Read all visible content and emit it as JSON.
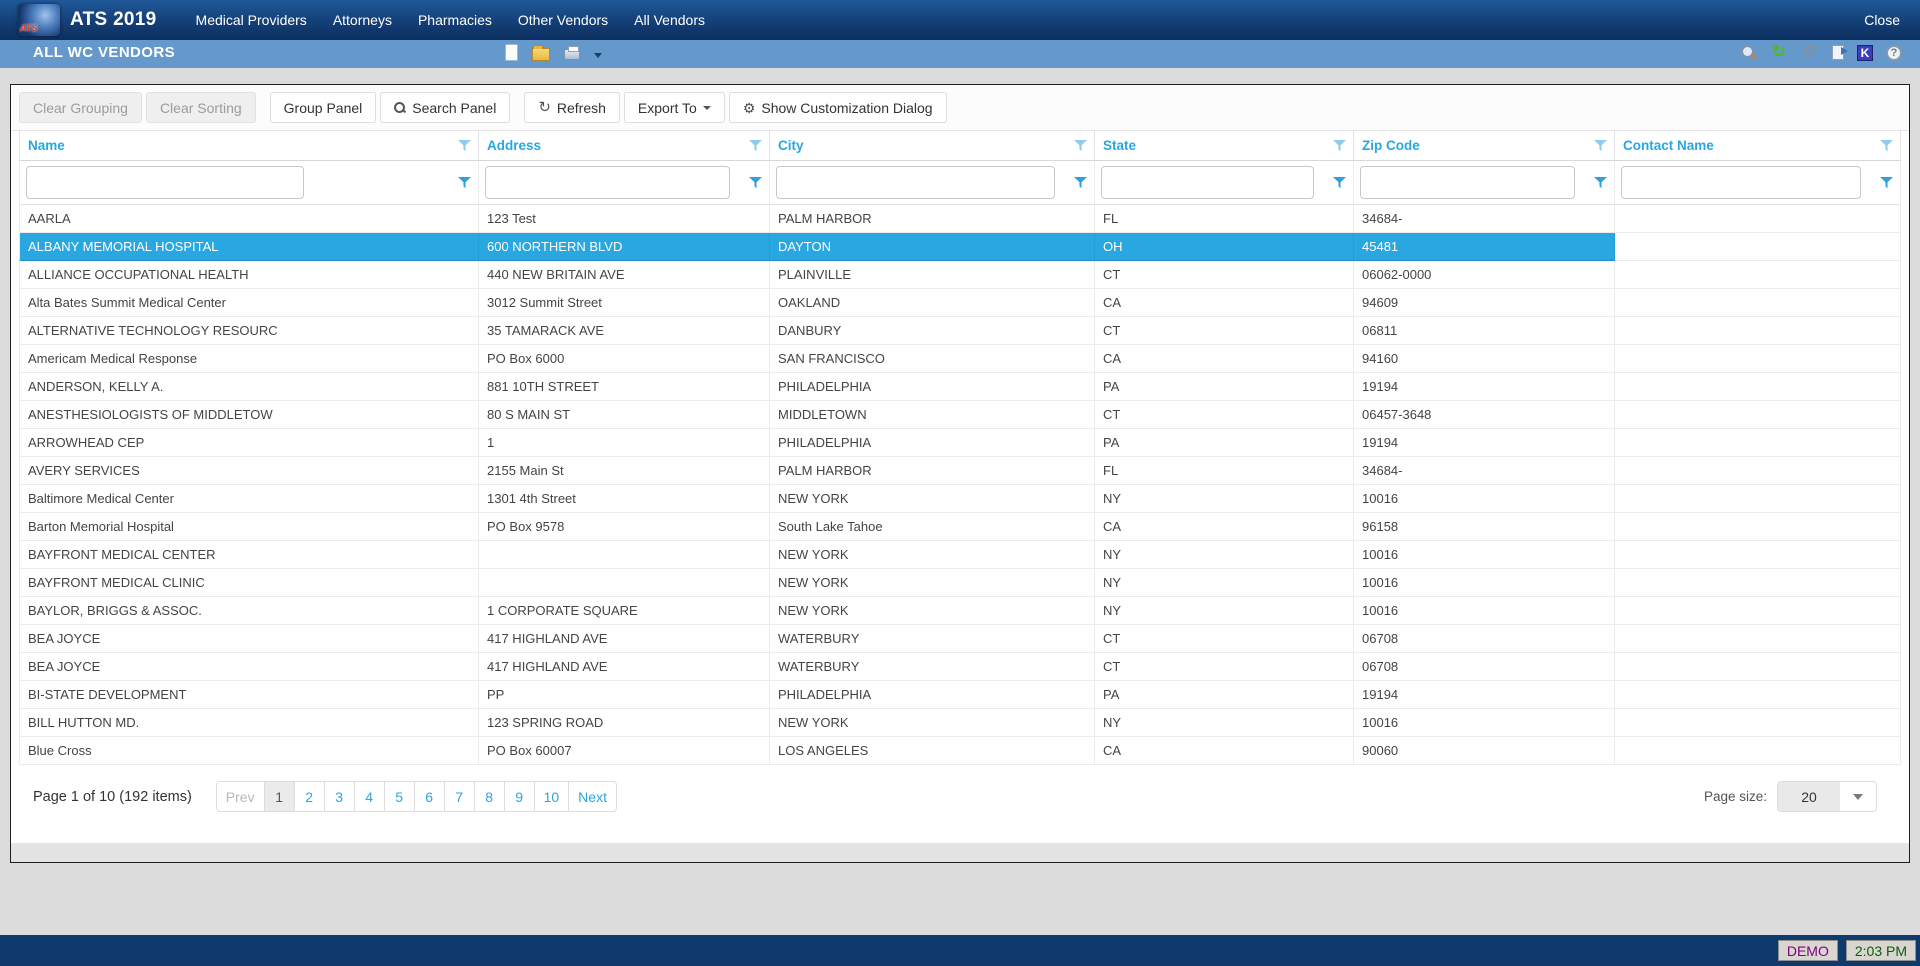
{
  "colors": {
    "accent_blue": "#29a7e0",
    "nav_navy_top": "#1f5899",
    "nav_navy_bottom": "#0c2f60",
    "title_bar_blue": "#6598cb",
    "selected_row": "#29a7e0",
    "status_navy": "#0e3a6d",
    "demo_text": "#800080",
    "time_text": "#0d5c0d"
  },
  "top_nav": {
    "brand": "ATS 2019",
    "items": [
      "Medical Providers",
      "Attorneys",
      "Pharmacies",
      "Other Vendors",
      "All Vendors"
    ],
    "close_label": "Close"
  },
  "title_bar": {
    "title": "ALL WC VENDORS",
    "center_icons": [
      "new-document-icon",
      "open-folder-icon",
      "print-icon",
      "dropdown-caret"
    ],
    "right_icons": [
      "search-icon",
      "refresh-icon",
      "gear-icon",
      "export-icon",
      "keyboard-k-icon",
      "help-icon"
    ]
  },
  "toolbar": {
    "buttons": [
      {
        "label": "Clear Grouping",
        "icon": "",
        "enabled": false
      },
      {
        "label": "Clear Sorting",
        "icon": "",
        "enabled": false
      },
      {
        "label": "Group Panel",
        "icon": "",
        "enabled": true
      },
      {
        "label": "Search Panel",
        "icon": "search",
        "enabled": true
      },
      {
        "label": "Refresh",
        "icon": "refresh",
        "enabled": true
      },
      {
        "label": "Export To",
        "icon": "caret-after",
        "enabled": true
      },
      {
        "label": "Show Customization Dialog",
        "icon": "gear",
        "enabled": true
      }
    ]
  },
  "grid": {
    "columns": [
      "Name",
      "Address",
      "City",
      "State",
      "Zip Code",
      "Contact Name"
    ],
    "filter_row": {
      "values": [
        "",
        "",
        "",
        "",
        "",
        ""
      ],
      "placeholders": [
        "",
        "",
        "",
        "",
        "",
        ""
      ]
    },
    "selected_row_index": 1,
    "rows": [
      {
        "name": "AARLA",
        "address": "123 Test",
        "city": "PALM HARBOR",
        "state": "FL",
        "zip": "34684-",
        "contact": ""
      },
      {
        "name": "ALBANY MEMORIAL HOSPITAL",
        "address": "600 NORTHERN BLVD",
        "city": "DAYTON",
        "state": "OH",
        "zip": "45481",
        "contact": ""
      },
      {
        "name": "ALLIANCE OCCUPATIONAL HEALTH",
        "address": "440 NEW BRITAIN AVE",
        "city": "PLAINVILLE",
        "state": "CT",
        "zip": "06062-0000",
        "contact": ""
      },
      {
        "name": "Alta Bates Summit Medical Center",
        "address": "3012 Summit Street",
        "city": "OAKLAND",
        "state": "CA",
        "zip": "94609",
        "contact": ""
      },
      {
        "name": "ALTERNATIVE TECHNOLOGY RESOURC",
        "address": "35 TAMARACK AVE",
        "city": "DANBURY",
        "state": "CT",
        "zip": "06811",
        "contact": ""
      },
      {
        "name": "Americam Medical Response",
        "address": "PO Box 6000",
        "city": "SAN FRANCISCO",
        "state": "CA",
        "zip": "94160",
        "contact": ""
      },
      {
        "name": "ANDERSON, KELLY A.",
        "address": "881 10TH STREET",
        "city": "PHILADELPHIA",
        "state": "PA",
        "zip": "19194",
        "contact": ""
      },
      {
        "name": "ANESTHESIOLOGISTS OF MIDDLETOW",
        "address": "80 S MAIN ST",
        "city": "MIDDLETOWN",
        "state": "CT",
        "zip": "06457-3648",
        "contact": ""
      },
      {
        "name": "ARROWHEAD CEP",
        "address": "1",
        "city": "PHILADELPHIA",
        "state": "PA",
        "zip": "19194",
        "contact": ""
      },
      {
        "name": "AVERY SERVICES",
        "address": "2155 Main St",
        "city": "PALM HARBOR",
        "state": "FL",
        "zip": "34684-",
        "contact": ""
      },
      {
        "name": "Baltimore Medical Center",
        "address": "1301 4th Street",
        "city": "NEW YORK",
        "state": "NY",
        "zip": "10016",
        "contact": ""
      },
      {
        "name": "Barton Memorial Hospital",
        "address": "PO Box 9578",
        "city": "South Lake Tahoe",
        "state": "CA",
        "zip": "96158",
        "contact": ""
      },
      {
        "name": "BAYFRONT MEDICAL CENTER",
        "address": "",
        "city": "NEW YORK",
        "state": "NY",
        "zip": "10016",
        "contact": ""
      },
      {
        "name": "BAYFRONT MEDICAL CLINIC",
        "address": "",
        "city": "NEW YORK",
        "state": "NY",
        "zip": "10016",
        "contact": ""
      },
      {
        "name": "BAYLOR, BRIGGS & ASSOC.",
        "address": "1 CORPORATE SQUARE",
        "city": "NEW YORK",
        "state": "NY",
        "zip": "10016",
        "contact": ""
      },
      {
        "name": "BEA JOYCE",
        "address": "417 HIGHLAND AVE",
        "city": "WATERBURY",
        "state": "CT",
        "zip": "06708",
        "contact": ""
      },
      {
        "name": "BEA JOYCE",
        "address": "417 HIGHLAND AVE",
        "city": "WATERBURY",
        "state": "CT",
        "zip": "06708",
        "contact": ""
      },
      {
        "name": "BI-STATE DEVELOPMENT",
        "address": "PP",
        "city": "PHILADELPHIA",
        "state": "PA",
        "zip": "19194",
        "contact": ""
      },
      {
        "name": "BILL HUTTON MD.",
        "address": "123 SPRING ROAD",
        "city": "NEW YORK",
        "state": "NY",
        "zip": "10016",
        "contact": ""
      },
      {
        "name": "Blue Cross",
        "address": "PO Box 60007",
        "city": "LOS ANGELES",
        "state": "CA",
        "zip": "90060",
        "contact": ""
      }
    ]
  },
  "pager": {
    "summary": "Page 1 of 10 (192 items)",
    "prev_label": "Prev",
    "next_label": "Next",
    "pages": [
      "1",
      "2",
      "3",
      "4",
      "5",
      "6",
      "7",
      "8",
      "9",
      "10"
    ],
    "current_page": "1",
    "page_size_label": "Page size:",
    "page_size": "20"
  },
  "status_bar": {
    "mode": "DEMO",
    "time": "2:03 PM"
  }
}
